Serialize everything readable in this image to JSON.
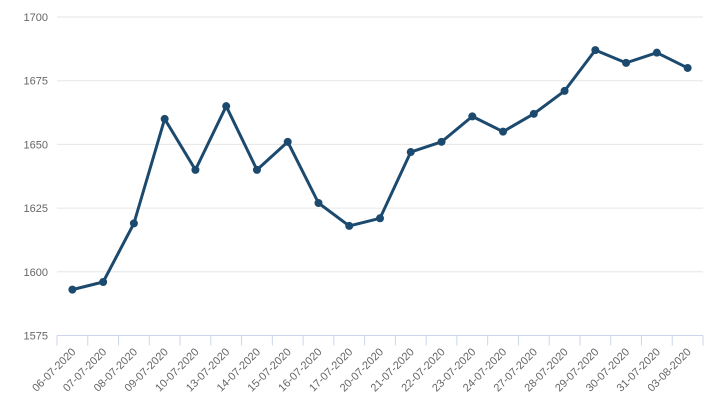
{
  "chart_data": {
    "type": "line",
    "title": "",
    "xlabel": "",
    "ylabel": "",
    "categories": [
      "06-07-2020",
      "07-07-2020",
      "08-07-2020",
      "09-07-2020",
      "10-07-2020",
      "13-07-2020",
      "14-07-2020",
      "15-07-2020",
      "16-07-2020",
      "17-07-2020",
      "20-07-2020",
      "21-07-2020",
      "22-07-2020",
      "23-07-2020",
      "24-07-2020",
      "27-07-2020",
      "28-07-2020",
      "29-07-2020",
      "30-07-2020",
      "31-07-2020",
      "03-08-2020"
    ],
    "values": [
      1593,
      1596,
      1619,
      1660,
      1640,
      1665,
      1640,
      1651,
      1627,
      1618,
      1621,
      1647,
      1651,
      1661,
      1655,
      1662,
      1671,
      1687,
      1682,
      1686,
      1680
    ],
    "ylim": [
      1575,
      1700
    ],
    "yticks": [
      1575,
      1600,
      1625,
      1650,
      1675,
      1700
    ],
    "grid": true,
    "legend": false,
    "colors": {
      "line": "#1c4a6e",
      "marker": "#1c4a6e",
      "grid": "#e6e6e6",
      "axis": "#ccd6eb",
      "labels": "#666666",
      "background": "#ffffff"
    }
  }
}
